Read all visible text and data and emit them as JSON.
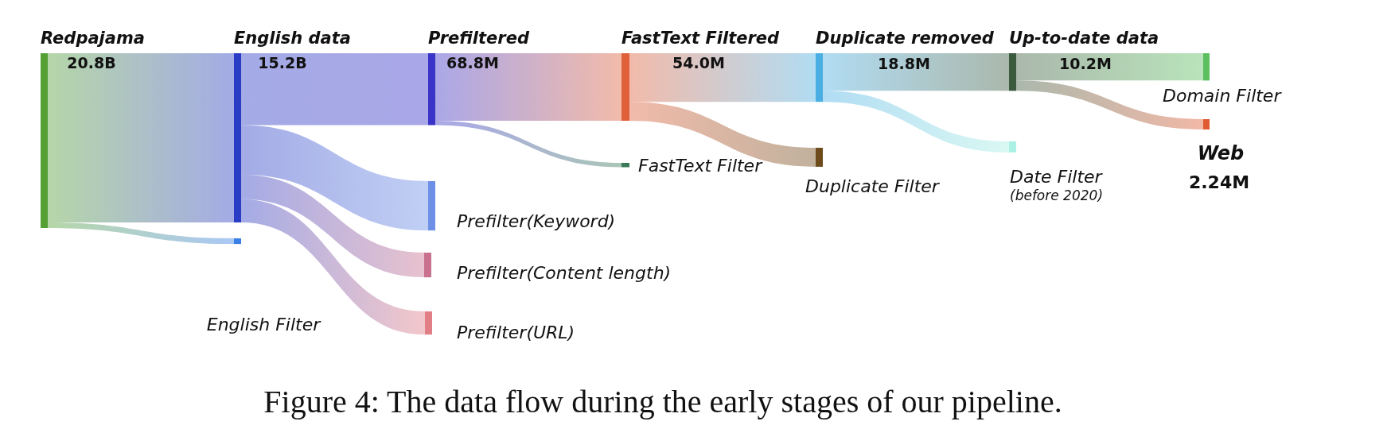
{
  "chart_data": {
    "type": "other",
    "categories": [
      "Redpajama",
      "English data",
      "English Filter",
      "Prefiltered",
      "Prefilter(Keyword)",
      "Prefilter(Content length)",
      "Prefilter(URL)",
      "FastText Filtered",
      "FastText Filter",
      "Duplicate removed",
      "Duplicate Filter",
      "Up-to-date data",
      "Date Filter",
      "Domain Filter",
      "Web"
    ],
    "values": [
      20800000000,
      15200000000,
      null,
      68800000,
      null,
      null,
      null,
      54000000,
      null,
      18800000,
      null,
      10200000,
      null,
      null,
      2240000
    ],
    "value_labels": [
      "20.8B",
      "15.2B",
      null,
      "68.8M",
      null,
      null,
      null,
      "54.0M",
      null,
      "18.8M",
      null,
      "10.2M",
      null,
      null,
      "2.24M"
    ],
    "colors": [
      "#55a035",
      "#2b3cc4",
      "#3b80e6",
      "#3a33c8",
      "#6d90e6",
      "#c9718f",
      "#e27e86",
      "#e0603a",
      "#3a7a58",
      "#4aaee2",
      "#6e4b1c",
      "#3b5a3e",
      "#aaf0e4",
      "#5cc060",
      "#e05a32"
    ],
    "annotations": [
      "(before 2020)",
      "Figure 4: The data flow during the early stages of our pipeline."
    ]
  }
}
